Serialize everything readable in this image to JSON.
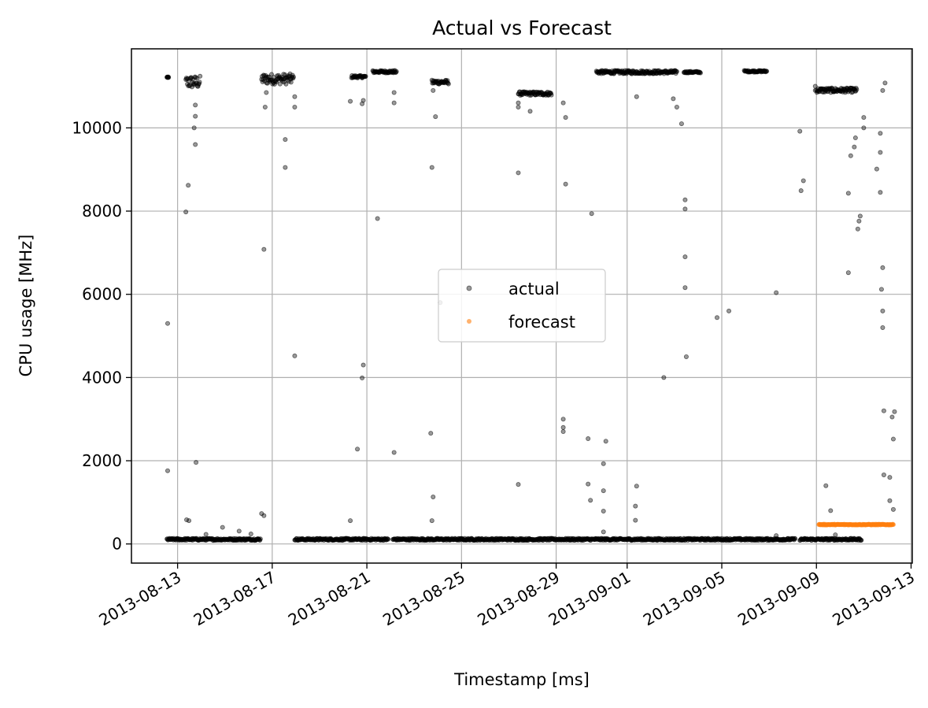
{
  "chart_data": {
    "type": "scatter",
    "title": "Actual vs Forecast",
    "xlabel": "Timestamp [ms]",
    "ylabel": "CPU usage [MHz]",
    "x_ticks": [
      "2013-08-13",
      "2013-08-17",
      "2013-08-21",
      "2013-08-25",
      "2013-08-29",
      "2013-09-01",
      "2013-09-05",
      "2013-09-09",
      "2013-09-13"
    ],
    "x_tick_days": [
      0,
      4,
      8,
      12,
      16,
      19,
      23,
      27,
      31
    ],
    "xlim": [
      -1.95,
      31.05
    ],
    "y_ticks": [
      0,
      2000,
      4000,
      6000,
      8000,
      10000
    ],
    "y_tick_labels": [
      "0",
      "2000",
      "4000",
      "6000",
      "8000",
      "10000"
    ],
    "ylim": [
      -460,
      11900
    ],
    "grid": true,
    "legend_position": "center",
    "colors": {
      "actual": "#000000",
      "forecast": "#ff7f0e",
      "grid": "#b0b0b0"
    },
    "series": [
      {
        "name": "actual",
        "clusters": [
          {
            "x": [
              -0.45,
              -0.38
            ],
            "y": [
              11230,
              11210
            ],
            "dense": true
          },
          {
            "x": [
              0.35,
              0.95
            ],
            "y": [
              10950,
              11250
            ],
            "dense": true
          },
          {
            "x": [
              3.55,
              4.9
            ],
            "y": [
              11050,
              11300
            ],
            "dense": true
          },
          {
            "x": [
              7.35,
              7.95
            ],
            "y": [
              11200,
              11260
            ],
            "dense": true
          },
          {
            "x": [
              8.25,
              9.25
            ],
            "y": [
              11320,
              11380
            ],
            "dense": true
          },
          {
            "x": [
              10.75,
              11.45
            ],
            "y": [
              11050,
              11150
            ],
            "dense": true
          },
          {
            "x": [
              14.4,
              15.8
            ],
            "y": [
              10780,
              10870
            ],
            "dense": true
          },
          {
            "x": [
              17.7,
              21.1
            ],
            "y": [
              11300,
              11380
            ],
            "dense": true
          },
          {
            "x": [
              21.4,
              22.1
            ],
            "y": [
              11320,
              11360
            ],
            "dense": true
          },
          {
            "x": [
              23.95,
              24.9
            ],
            "y": [
              11340,
              11380
            ],
            "dense": true
          },
          {
            "x": [
              27.0,
              28.7
            ],
            "y": [
              10850,
              10960
            ],
            "dense": true
          },
          {
            "x": [
              -0.45,
              3.5
            ],
            "y": [
              85,
              135
            ],
            "dense": true
          },
          {
            "x": [
              4.95,
              8.9
            ],
            "y": [
              85,
              135
            ],
            "dense": true
          },
          {
            "x": [
              9.1,
              26.1
            ],
            "y": [
              85,
              135
            ],
            "dense": true
          },
          {
            "x": [
              26.3,
              28.9
            ],
            "y": [
              85,
              135
            ],
            "dense": true
          }
        ],
        "points": [
          [
            -0.42,
            5300
          ],
          [
            -0.42,
            1760
          ],
          [
            0.35,
            7980
          ],
          [
            0.45,
            8620
          ],
          [
            0.38,
            580
          ],
          [
            0.48,
            560
          ],
          [
            0.75,
            9600
          ],
          [
            0.7,
            10000
          ],
          [
            0.75,
            10280
          ],
          [
            0.75,
            10550
          ],
          [
            0.78,
            1960
          ],
          [
            1.2,
            230
          ],
          [
            1.9,
            400
          ],
          [
            2.6,
            310
          ],
          [
            3.1,
            240
          ],
          [
            3.55,
            730
          ],
          [
            3.65,
            680
          ],
          [
            3.65,
            7080
          ],
          [
            3.75,
            10850
          ],
          [
            3.7,
            10500
          ],
          [
            4.55,
            9720
          ],
          [
            4.55,
            9050
          ],
          [
            4.95,
            4520
          ],
          [
            4.95,
            10500
          ],
          [
            4.95,
            10750
          ],
          [
            7.3,
            10640
          ],
          [
            7.3,
            560
          ],
          [
            7.6,
            2280
          ],
          [
            7.8,
            3990
          ],
          [
            7.85,
            4300
          ],
          [
            7.8,
            10580
          ],
          [
            7.85,
            10660
          ],
          [
            8.45,
            7820
          ],
          [
            9.15,
            2200
          ],
          [
            9.15,
            10600
          ],
          [
            9.15,
            10850
          ],
          [
            10.75,
            9050
          ],
          [
            10.8,
            1130
          ],
          [
            10.75,
            560
          ],
          [
            10.7,
            2660
          ],
          [
            10.9,
            10270
          ],
          [
            10.8,
            10900
          ],
          [
            11.1,
            5800
          ],
          [
            14.4,
            1430
          ],
          [
            14.4,
            8920
          ],
          [
            14.4,
            10500
          ],
          [
            14.4,
            10600
          ],
          [
            14.9,
            10400
          ],
          [
            16.3,
            3000
          ],
          [
            16.3,
            2800
          ],
          [
            16.3,
            2700
          ],
          [
            16.4,
            8650
          ],
          [
            16.4,
            10250
          ],
          [
            16.3,
            10600
          ],
          [
            17.35,
            1440
          ],
          [
            17.45,
            1050
          ],
          [
            17.35,
            2530
          ],
          [
            17.5,
            7940
          ],
          [
            18.0,
            1930
          ],
          [
            18.1,
            2470
          ],
          [
            18.0,
            1280
          ],
          [
            18.0,
            790
          ],
          [
            18.0,
            290
          ],
          [
            19.4,
            1390
          ],
          [
            19.35,
            910
          ],
          [
            19.35,
            570
          ],
          [
            19.4,
            10750
          ],
          [
            20.55,
            4000
          ],
          [
            20.95,
            10700
          ],
          [
            21.1,
            10500
          ],
          [
            21.3,
            10100
          ],
          [
            21.45,
            8270
          ],
          [
            21.45,
            8050
          ],
          [
            21.45,
            6900
          ],
          [
            21.45,
            6160
          ],
          [
            21.5,
            4500
          ],
          [
            22.8,
            5440
          ],
          [
            23.3,
            5600
          ],
          [
            25.3,
            6040
          ],
          [
            25.3,
            200
          ],
          [
            26.3,
            9920
          ],
          [
            26.35,
            8490
          ],
          [
            26.45,
            8730
          ],
          [
            26.95,
            10900
          ],
          [
            26.95,
            11000
          ],
          [
            27.4,
            1400
          ],
          [
            27.6,
            800
          ],
          [
            27.8,
            220
          ],
          [
            28.35,
            6520
          ],
          [
            28.35,
            8430
          ],
          [
            28.45,
            9330
          ],
          [
            28.6,
            9540
          ],
          [
            28.65,
            9760
          ],
          [
            28.75,
            7570
          ],
          [
            28.8,
            7760
          ],
          [
            28.85,
            7880
          ],
          [
            29.0,
            10000
          ],
          [
            29.0,
            10250
          ],
          [
            29.55,
            9010
          ],
          [
            29.7,
            9870
          ],
          [
            29.7,
            9410
          ],
          [
            29.7,
            8450
          ],
          [
            29.8,
            6640
          ],
          [
            29.75,
            6120
          ],
          [
            29.8,
            5600
          ],
          [
            29.8,
            5200
          ],
          [
            29.85,
            3200
          ],
          [
            29.85,
            1660
          ],
          [
            30.1,
            1600
          ],
          [
            30.1,
            1040
          ],
          [
            30.2,
            3050
          ],
          [
            30.25,
            2520
          ],
          [
            30.3,
            3180
          ],
          [
            30.25,
            830
          ],
          [
            29.8,
            10900
          ],
          [
            29.9,
            11080
          ]
        ]
      },
      {
        "name": "forecast",
        "clusters": [
          {
            "x": [
              27.1,
              30.25
            ],
            "y": [
              455,
              475
            ],
            "dense": true
          }
        ]
      }
    ]
  }
}
